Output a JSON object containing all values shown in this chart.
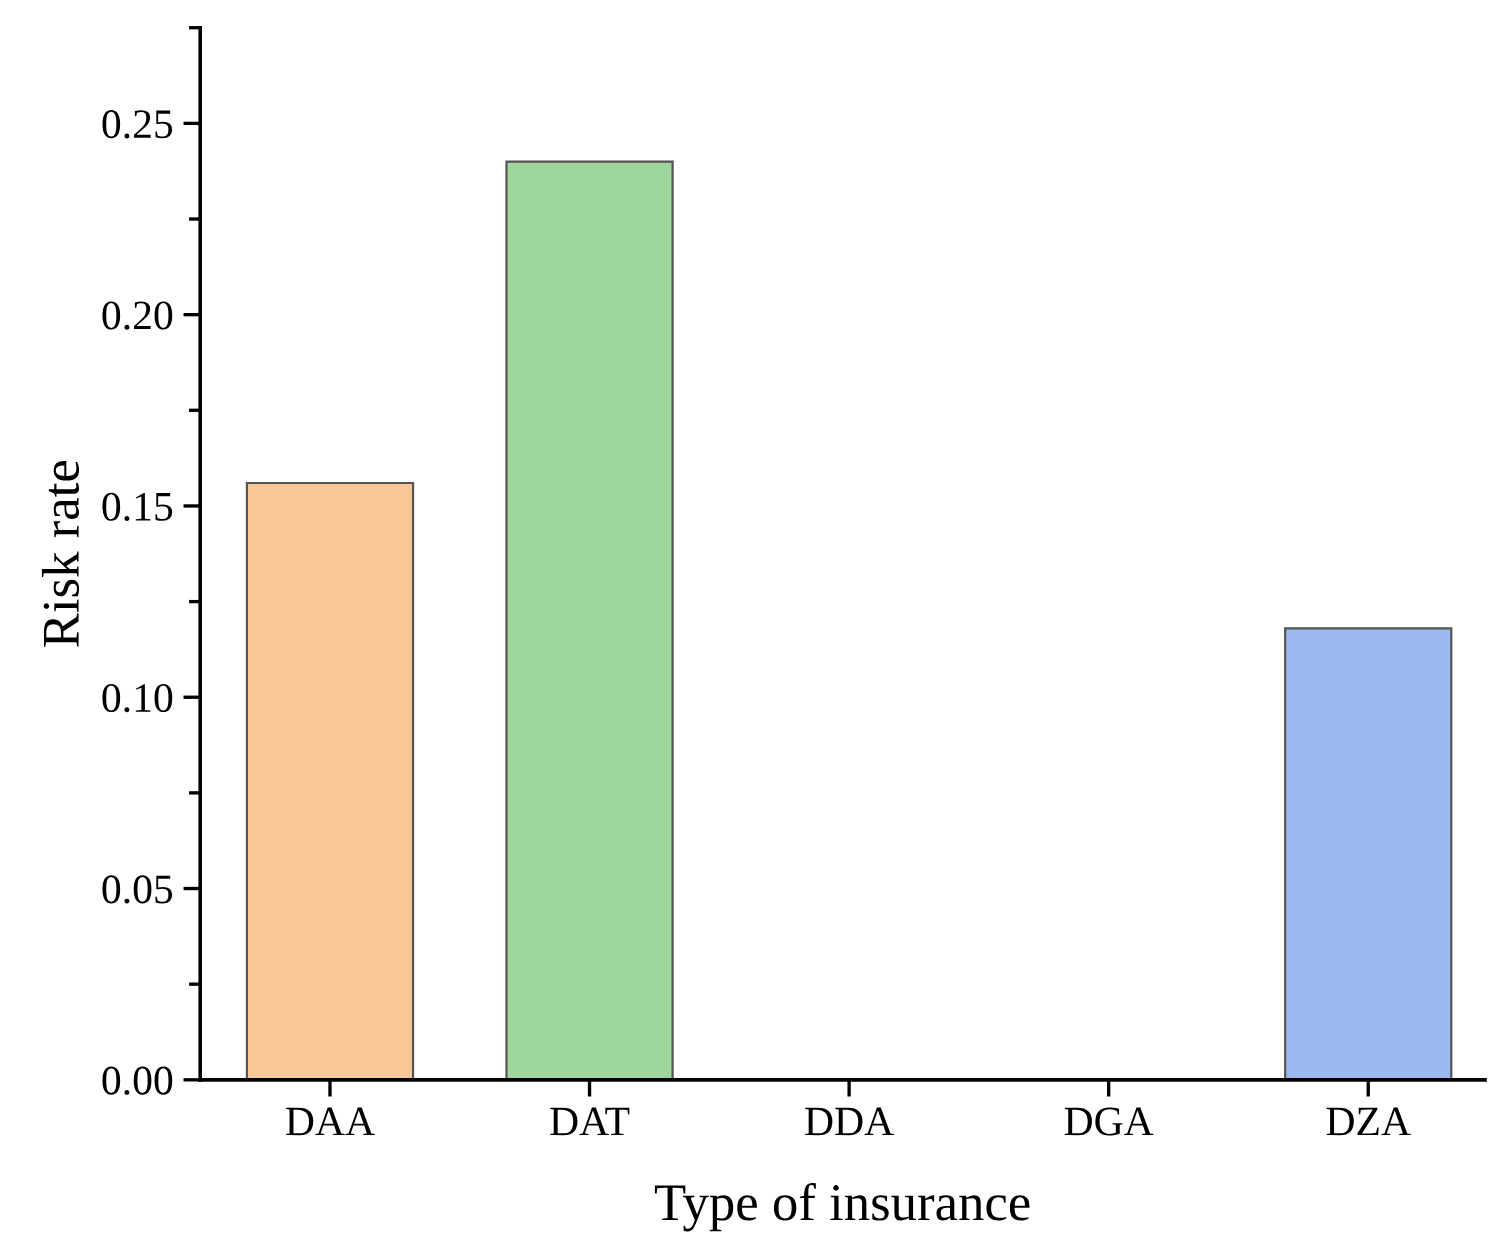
{
  "chart_data": {
    "type": "bar",
    "xlabel": "Type of insurance",
    "ylabel": "Risk rate",
    "categories": [
      "DAA",
      "DAT",
      "DDA",
      "DGA",
      "DZA"
    ],
    "values": [
      0.156,
      0.24,
      0,
      0,
      0.118
    ],
    "colors": [
      "#f9c897",
      "#9ed69b",
      "#555555",
      "#555555",
      "#9bbaf1"
    ],
    "ylim": [
      0,
      0.275
    ],
    "yticks": [
      {
        "value": 0,
        "label": "0.00"
      },
      0.05,
      {
        "value": 0.1,
        "label": "0.10"
      },
      0.15,
      {
        "value": 0.2,
        "label": "0.20"
      },
      0.25
    ],
    "grid": false,
    "legend": false
  }
}
